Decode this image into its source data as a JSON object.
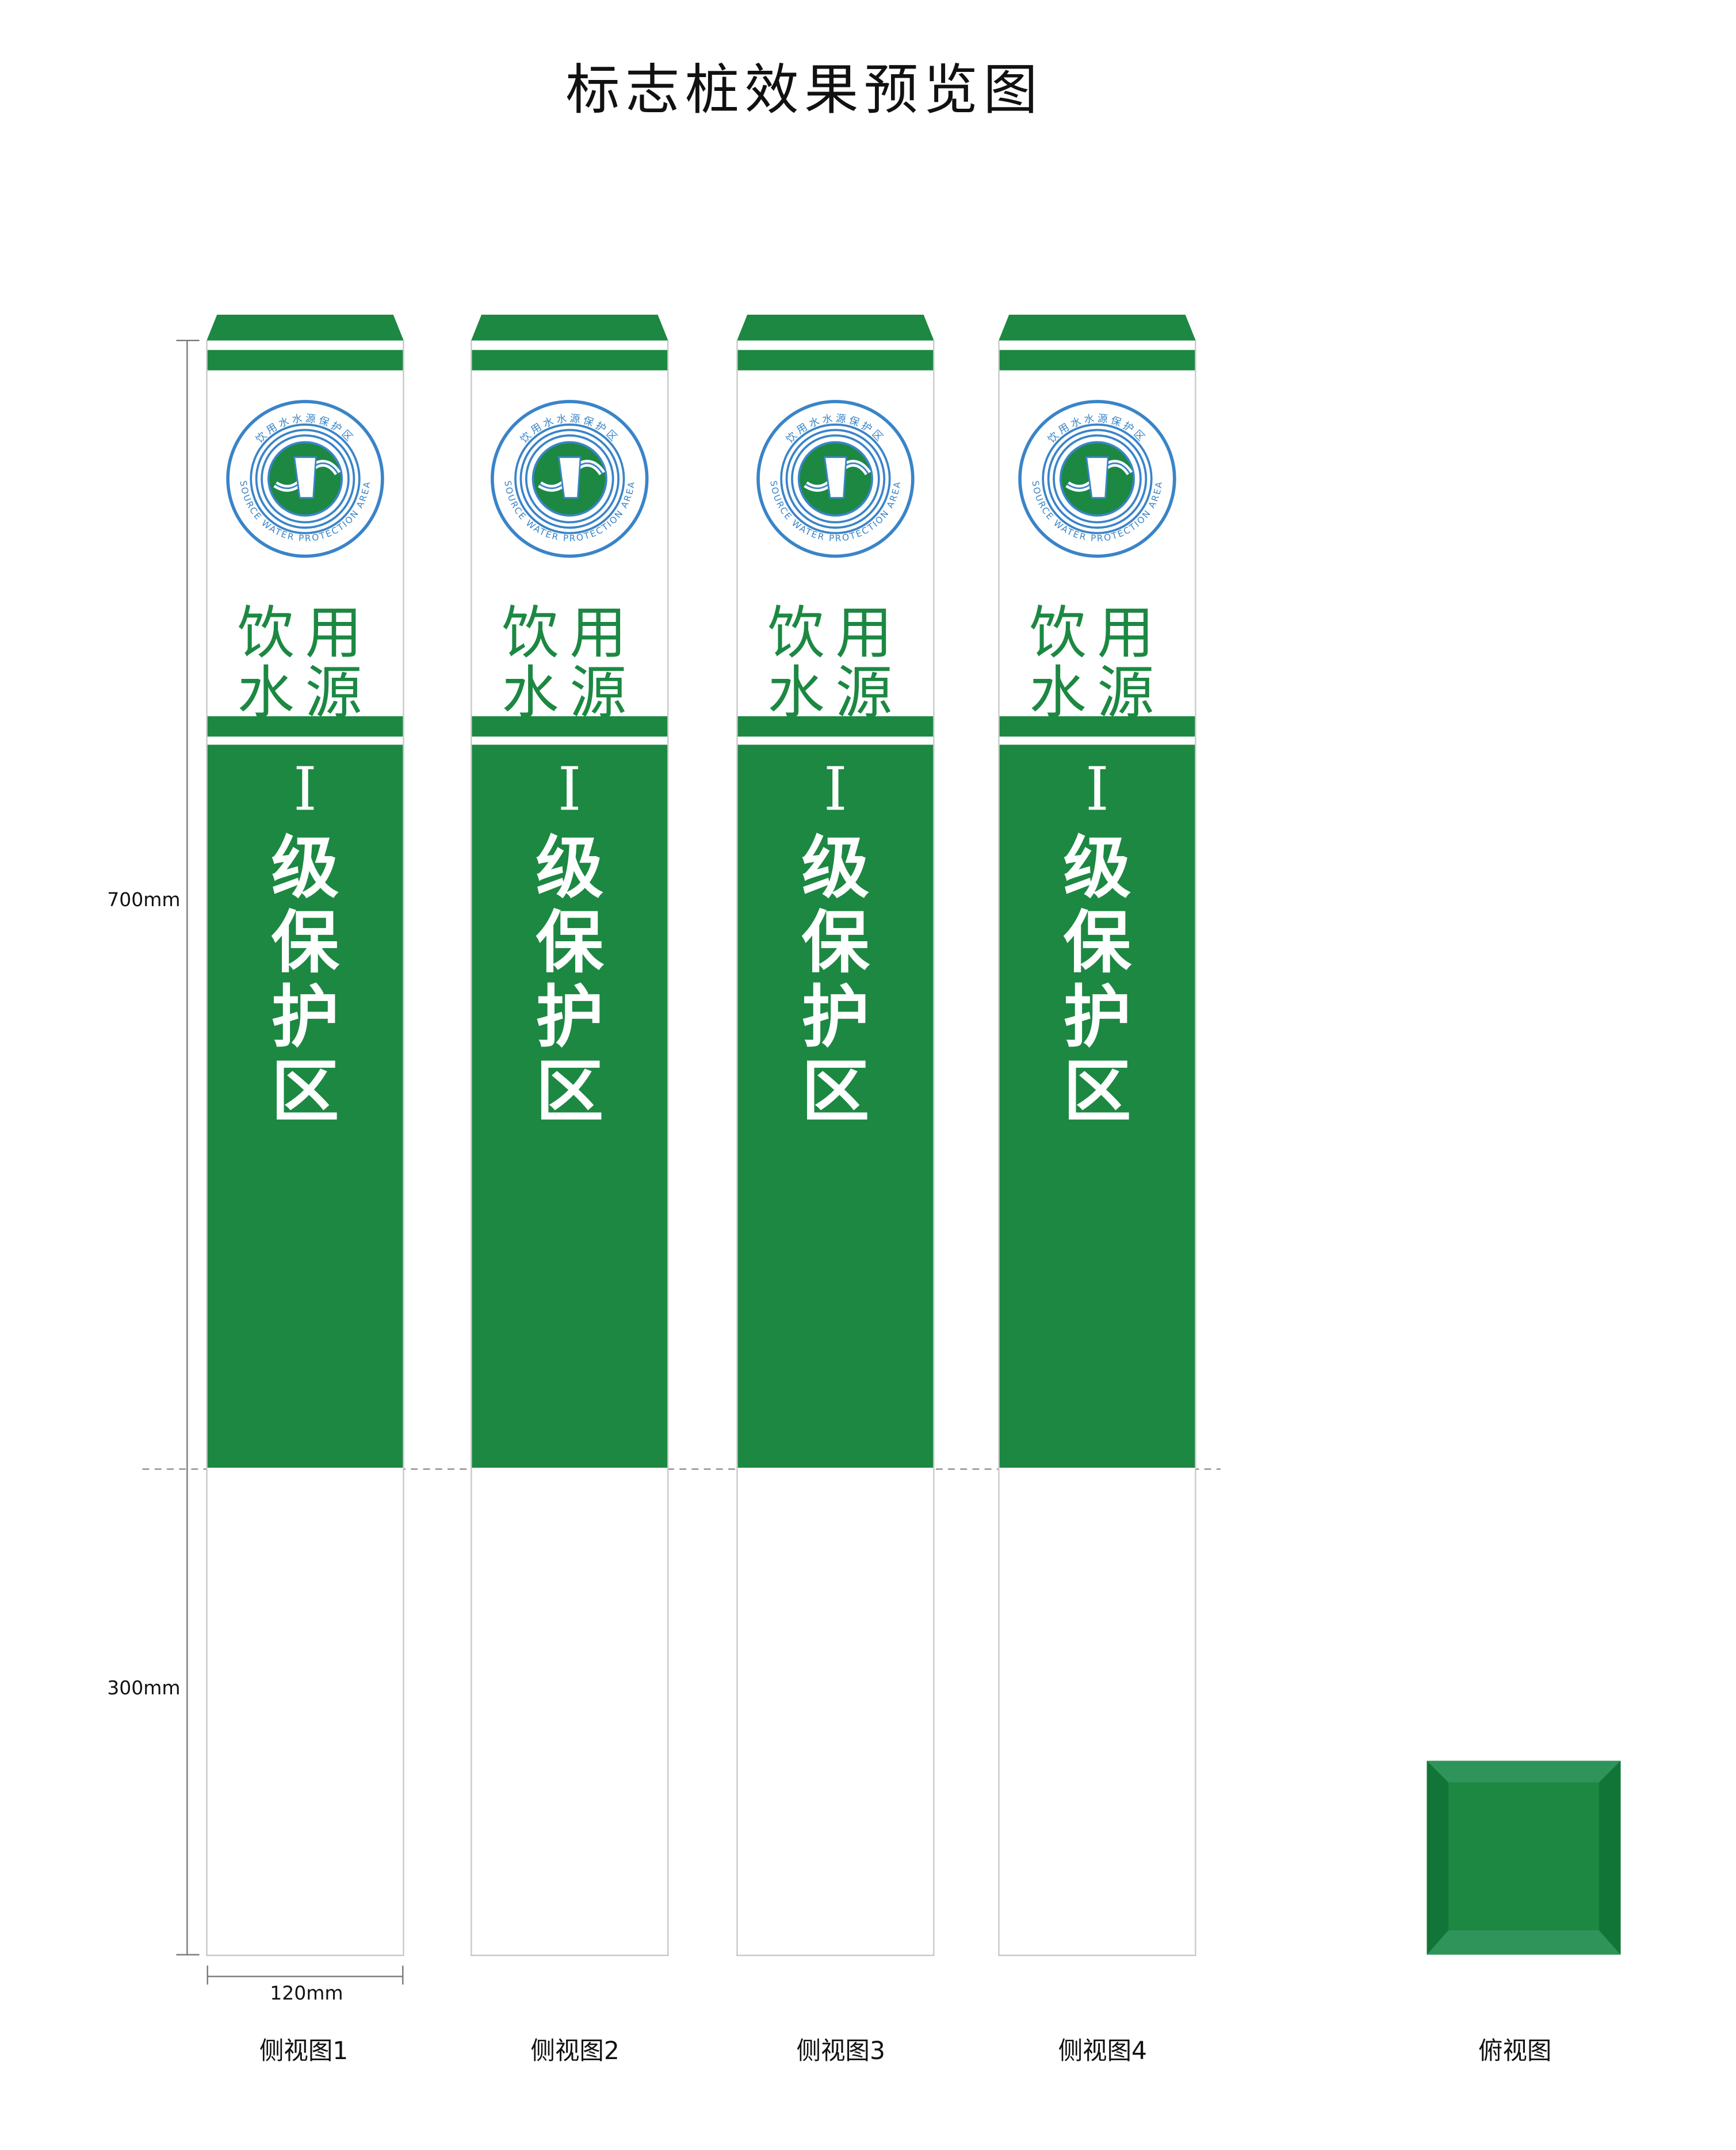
{
  "title": "标志桩效果预览图",
  "colors": {
    "green": "#1c8842",
    "green_light": "#2f9459",
    "green_dark": "#127538",
    "logo_blue": "#3a84c8"
  },
  "post": {
    "logo_text_cn": "饮用水水源保护区",
    "logo_text_en": "SOURCE WATER PROTECTION AREA",
    "line1": "饮用",
    "line2": "水源",
    "grade": "I",
    "grade_text": [
      "级",
      "保",
      "护",
      "区"
    ]
  },
  "dimensions": {
    "upper": "700mm",
    "lower": "300mm",
    "width": "120mm"
  },
  "views": [
    "侧视图1",
    "侧视图2",
    "侧视图3",
    "侧视图4"
  ],
  "top_view_label": "俯视图"
}
